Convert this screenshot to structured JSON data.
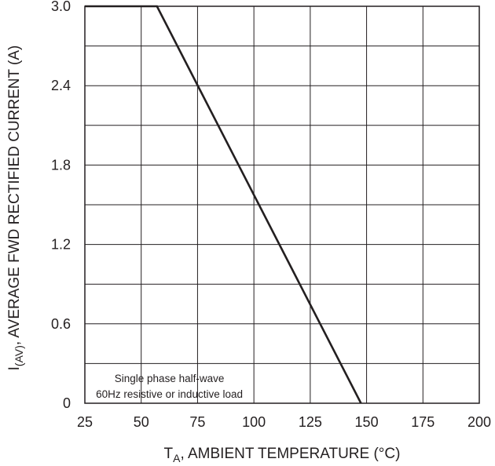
{
  "chart_data": {
    "type": "line",
    "title": "",
    "xlabel": {
      "main": "T",
      "sub": "A",
      "rest": ", AMBIENT TEMPERATURE (°C)"
    },
    "ylabel": {
      "main": "I",
      "sub": "(AV)",
      "rest": ", AVERAGE FWD RECTIFIED CURRENT (A)"
    },
    "xlim": [
      25,
      200
    ],
    "ylim": [
      0,
      3.0
    ],
    "x_ticks": [
      25,
      50,
      75,
      100,
      125,
      150,
      175,
      200
    ],
    "x_tick_labels": [
      "25",
      "50",
      "75",
      "100",
      "125",
      "150",
      "175",
      "200"
    ],
    "y_ticks": [
      0,
      0.6,
      1.2,
      1.8,
      2.4,
      3.0
    ],
    "y_tick_labels": [
      "0",
      "0.6",
      "1.2",
      "1.8",
      "2.4",
      "3.0"
    ],
    "grid": true,
    "x_gridlines": [
      25,
      50,
      75,
      100,
      125,
      150,
      175,
      200
    ],
    "y_gridlines": [
      0,
      0.3,
      0.6,
      0.9,
      1.2,
      1.5,
      1.8,
      2.1,
      2.4,
      2.7,
      3.0
    ],
    "series": [
      {
        "x": [
          25,
          57,
          147.5
        ],
        "y": [
          3.0,
          3.0,
          0
        ]
      }
    ],
    "annotation": {
      "lines": [
        "Single phase half-wave",
        "60Hz resistive or inductive load"
      ],
      "x_center": 62.5,
      "y_lines": [
        0.19,
        0.07
      ]
    },
    "colors": {
      "line": "#231f20",
      "grid": "#231f20"
    }
  }
}
